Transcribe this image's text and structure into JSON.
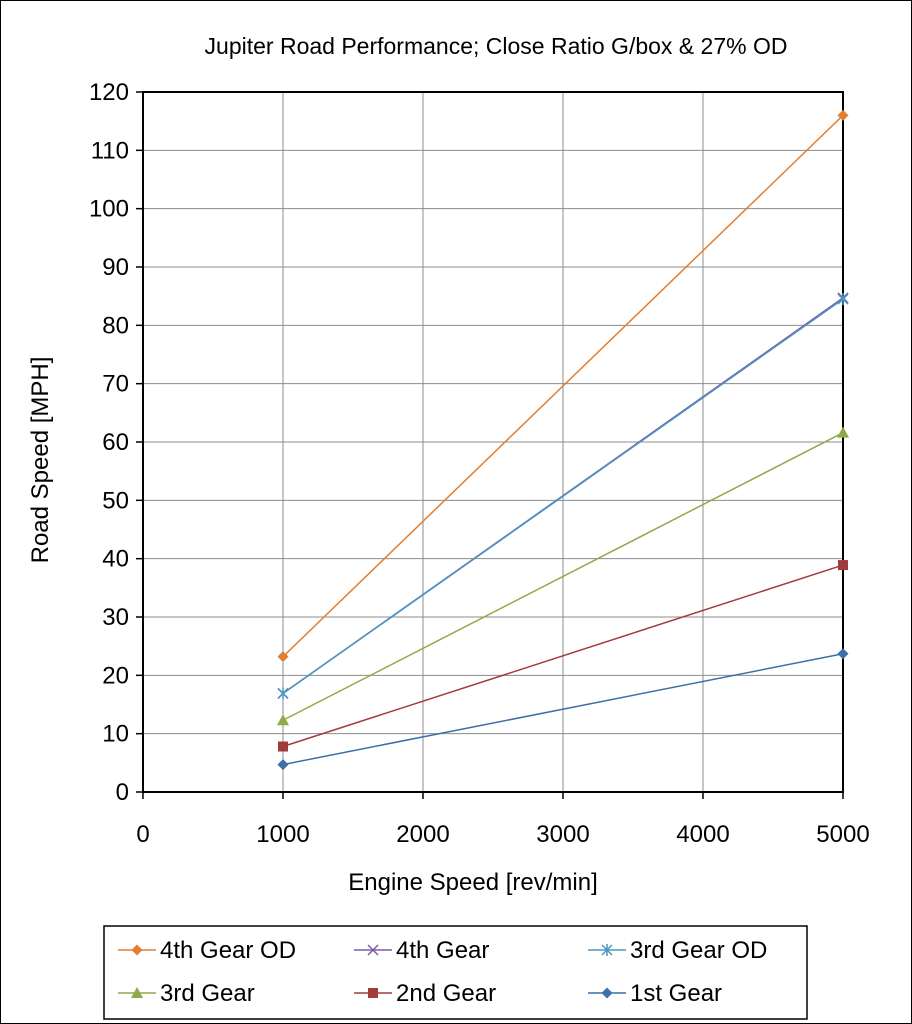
{
  "chart_data": {
    "type": "line",
    "title": "Jupiter Road Performance; Close Ratio G/box & 27% OD",
    "xlabel": "Engine Speed [rev/min]",
    "ylabel": "Road Speed [MPH]",
    "xlim": [
      0,
      5000
    ],
    "ylim": [
      0,
      120
    ],
    "xticks": [
      0,
      1000,
      2000,
      3000,
      4000,
      5000
    ],
    "yticks": [
      0,
      10,
      20,
      30,
      40,
      50,
      60,
      70,
      80,
      90,
      100,
      110,
      120
    ],
    "grid": true,
    "legend_position": "bottom",
    "series": [
      {
        "name": "4th Gear OD",
        "color": "#E07F33",
        "marker": "diamond",
        "x": [
          1000,
          5000
        ],
        "y": [
          23.2,
          116
        ]
      },
      {
        "name": "4th Gear",
        "color": "#7B5CA8",
        "marker": "x",
        "x": [
          1000,
          5000
        ],
        "y": [
          16.9,
          84.7
        ]
      },
      {
        "name": "3rd Gear OD",
        "color": "#4A96C2",
        "marker": "star",
        "x": [
          1000,
          5000
        ],
        "y": [
          16.9,
          84.5
        ]
      },
      {
        "name": "3rd Gear",
        "color": "#8FAA4A",
        "marker": "triangle",
        "x": [
          1000,
          5000
        ],
        "y": [
          12.3,
          61.6
        ]
      },
      {
        "name": "2nd Gear",
        "color": "#A23B3B",
        "marker": "square",
        "x": [
          1000,
          5000
        ],
        "y": [
          7.8,
          38.9
        ]
      },
      {
        "name": "1st Gear",
        "color": "#3D6FA8",
        "marker": "diamond",
        "x": [
          1000,
          5000
        ],
        "y": [
          4.7,
          23.7
        ]
      }
    ]
  }
}
